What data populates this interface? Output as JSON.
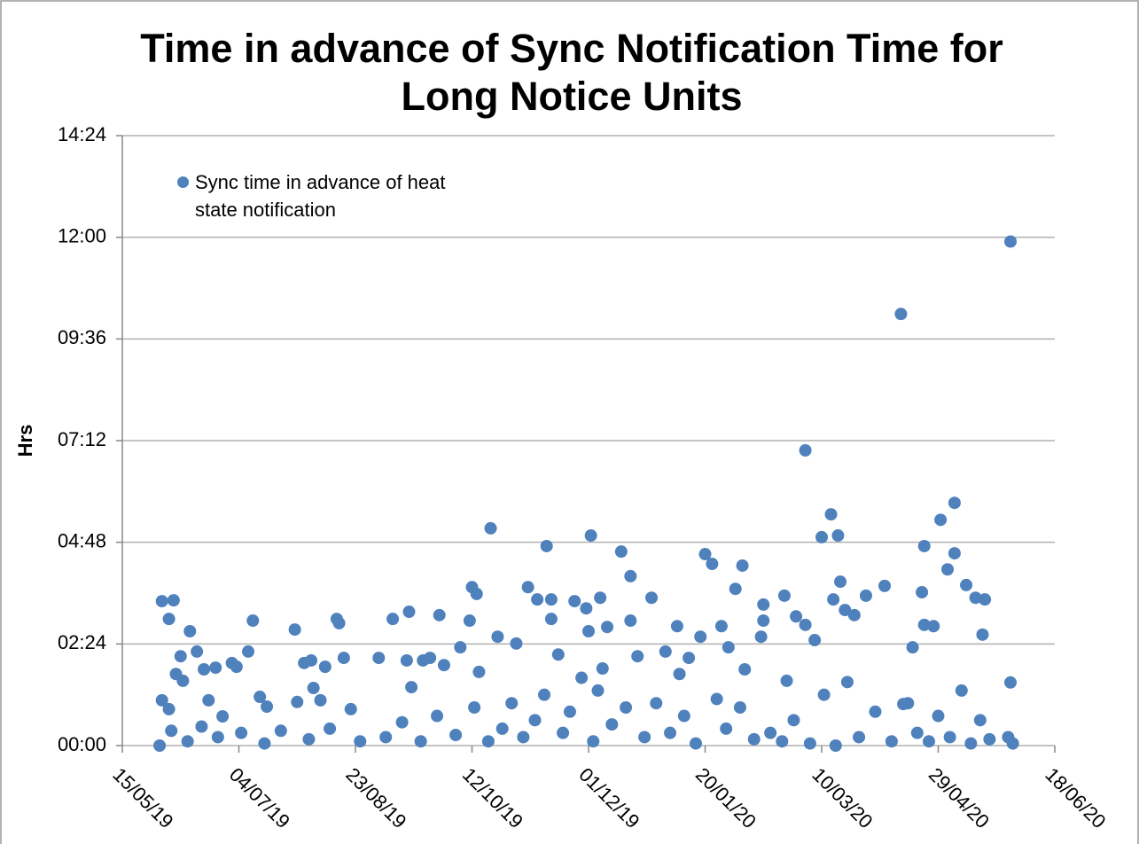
{
  "chart_data": {
    "type": "scatter",
    "title": "Time in advance of Sync Notification Time for Long Notice Units",
    "ylabel": "Hrs",
    "x": [
      "2019-06-01",
      "2019-06-01",
      "2019-06-04",
      "2019-06-04",
      "2019-06-06",
      "2019-06-07",
      "2019-06-09",
      "2019-06-10",
      "2019-06-13",
      "2019-06-16",
      "2019-06-19",
      "2019-06-21",
      "2019-06-24",
      "2019-06-27",
      "2019-07-01",
      "2019-07-03",
      "2019-07-08",
      "2019-07-10",
      "2019-07-13",
      "2019-07-16",
      "2019-07-28",
      "2019-07-29",
      "2019-08-01",
      "2019-08-04",
      "2019-08-05",
      "2019-08-08",
      "2019-08-10",
      "2019-08-15",
      "2019-08-16",
      "2019-08-18",
      "2019-08-21",
      "2019-09-02",
      "2019-09-08",
      "2019-09-14",
      "2019-09-15",
      "2019-09-16",
      "2019-09-21",
      "2019-09-24",
      "2019-09-28",
      "2019-09-30",
      "2019-10-07",
      "2019-10-11",
      "2019-10-12",
      "2019-10-14",
      "2019-10-15",
      "2019-10-20",
      "2019-10-23",
      "2019-10-31",
      "2019-11-05",
      "2019-11-09",
      "2019-11-13",
      "2019-11-15",
      "2019-11-15",
      "2019-11-18",
      "2019-11-25",
      "2019-11-30",
      "2019-12-01",
      "2019-12-02",
      "2019-12-06",
      "2019-12-07",
      "2019-12-09",
      "2019-12-15",
      "2019-12-19",
      "2019-12-19",
      "2019-12-22",
      "2019-12-28",
      "2020-01-03",
      "2020-01-08",
      "2020-01-09",
      "2020-01-13",
      "2020-01-18",
      "2020-01-20",
      "2020-01-23",
      "2020-01-27",
      "2020-01-30",
      "2020-02-02",
      "2020-02-05",
      "2020-02-06",
      "2020-02-13",
      "2020-02-14",
      "2020-02-14",
      "2020-02-23",
      "2020-02-24",
      "2020-02-28",
      "2020-03-03",
      "2020-03-03",
      "2020-03-07",
      "2020-03-10",
      "2020-03-14",
      "2020-03-15",
      "2020-03-17",
      "2020-03-18",
      "2020-03-20",
      "2020-03-24",
      "2020-03-29",
      "2020-04-06",
      "2020-04-13",
      "2020-04-14",
      "2020-04-18",
      "2020-04-22",
      "2020-04-23",
      "2020-04-23",
      "2020-04-27",
      "2020-04-30",
      "2020-05-03",
      "2020-05-06",
      "2020-05-06",
      "2020-05-11",
      "2020-05-15",
      "2020-05-18",
      "2020-05-19",
      "2020-05-30",
      "2020-05-30",
      "2019-05-31",
      "2019-06-05",
      "2019-06-12",
      "2019-06-18",
      "2019-06-25",
      "2019-07-05",
      "2019-07-15",
      "2019-07-22",
      "2019-08-03",
      "2019-08-12",
      "2019-08-25",
      "2019-09-05",
      "2019-09-12",
      "2019-09-20",
      "2019-09-27",
      "2019-10-05",
      "2019-10-13",
      "2019-10-19",
      "2019-10-25",
      "2019-10-29",
      "2019-11-03",
      "2019-11-08",
      "2019-11-12",
      "2019-11-20",
      "2019-11-23",
      "2019-11-28",
      "2019-12-03",
      "2019-12-05",
      "2019-12-11",
      "2019-12-17",
      "2019-12-25",
      "2019-12-30",
      "2020-01-05",
      "2020-01-11",
      "2020-01-16",
      "2020-01-25",
      "2020-01-29",
      "2020-02-04",
      "2020-02-10",
      "2020-02-17",
      "2020-02-22",
      "2020-02-27",
      "2020-03-05",
      "2020-03-11",
      "2020-03-16",
      "2020-03-21",
      "2020-03-26",
      "2020-04-02",
      "2020-04-09",
      "2020-04-16",
      "2020-04-20",
      "2020-04-25",
      "2020-04-29",
      "2020-05-04",
      "2020-05-09",
      "2020-05-13",
      "2020-05-17",
      "2020-05-21",
      "2020-05-29",
      "2020-05-31"
    ],
    "series": [
      {
        "name": "Sync time in advance of heat state notification",
        "color": "#4f81bd",
        "values": [
          3.41,
          1.07,
          2.99,
          0.86,
          3.43,
          1.69,
          2.11,
          1.53,
          2.7,
          2.22,
          1.8,
          1.07,
          1.84,
          0.69,
          1.95,
          1.86,
          2.22,
          2.95,
          1.15,
          0.92,
          2.74,
          1.03,
          1.95,
          2.01,
          1.36,
          1.07,
          1.86,
          2.99,
          2.89,
          2.07,
          0.86,
          2.07,
          2.99,
          2.01,
          3.16,
          1.38,
          2.01,
          2.07,
          3.08,
          1.9,
          2.32,
          2.95,
          3.74,
          3.58,
          1.74,
          5.13,
          2.57,
          2.41,
          3.74,
          3.45,
          4.71,
          3.45,
          2.99,
          2.15,
          3.41,
          3.24,
          2.7,
          4.96,
          3.49,
          1.82,
          2.8,
          4.58,
          4.0,
          2.95,
          2.11,
          3.49,
          2.22,
          2.82,
          1.69,
          2.07,
          2.57,
          4.52,
          4.29,
          2.82,
          2.32,
          3.7,
          4.25,
          1.8,
          2.57,
          3.33,
          2.95,
          3.54,
          1.53,
          3.05,
          6.97,
          2.85,
          2.49,
          4.92,
          5.46,
          3.45,
          4.96,
          3.87,
          3.2,
          3.08,
          3.54,
          3.77,
          10.19,
          0.98,
          2.32,
          3.62,
          4.71,
          2.85,
          2.82,
          5.33,
          4.16,
          5.73,
          4.54,
          3.79,
          3.49,
          2.62,
          3.45,
          11.9,
          1.49,
          0.0,
          0.35,
          0.1,
          0.45,
          0.2,
          0.3,
          0.05,
          0.35,
          0.15,
          0.4,
          0.1,
          0.2,
          0.55,
          0.1,
          0.7,
          0.25,
          0.9,
          0.1,
          0.4,
          1.0,
          0.2,
          0.6,
          1.2,
          0.3,
          0.8,
          1.6,
          0.1,
          1.3,
          0.5,
          0.9,
          0.2,
          1.0,
          0.3,
          0.7,
          0.05,
          1.1,
          0.4,
          0.9,
          0.15,
          0.3,
          0.1,
          0.6,
          0.05,
          1.2,
          0.0,
          1.5,
          0.2,
          0.8,
          0.1,
          1.0,
          0.3,
          0.1,
          0.7,
          0.2,
          1.3,
          0.05,
          0.6,
          0.15,
          0.2,
          0.05
        ]
      }
    ],
    "xlim": [
      "2019-05-15",
      "2020-06-18"
    ],
    "xticks": [
      {
        "value": "2019-05-15",
        "label": "15/05/19"
      },
      {
        "value": "2019-07-04",
        "label": "04/07/19"
      },
      {
        "value": "2019-08-23",
        "label": "23/08/19"
      },
      {
        "value": "2019-10-12",
        "label": "12/10/19"
      },
      {
        "value": "2019-12-01",
        "label": "01/12/19"
      },
      {
        "value": "2020-01-20",
        "label": "20/01/20"
      },
      {
        "value": "2020-03-10",
        "label": "10/03/20"
      },
      {
        "value": "2020-04-29",
        "label": "29/04/20"
      },
      {
        "value": "2020-06-18",
        "label": "18/06/20"
      }
    ],
    "ylim": [
      0,
      14.4
    ],
    "yticks": [
      {
        "value": 0,
        "label": "00:00"
      },
      {
        "value": 2.4,
        "label": "02:24"
      },
      {
        "value": 4.8,
        "label": "04:48"
      },
      {
        "value": 7.2,
        "label": "07:12"
      },
      {
        "value": 9.6,
        "label": "09:36"
      },
      {
        "value": 12,
        "label": "12:00"
      },
      {
        "value": 14.4,
        "label": "14:24"
      }
    ],
    "grid": true,
    "legend": "top-left"
  }
}
